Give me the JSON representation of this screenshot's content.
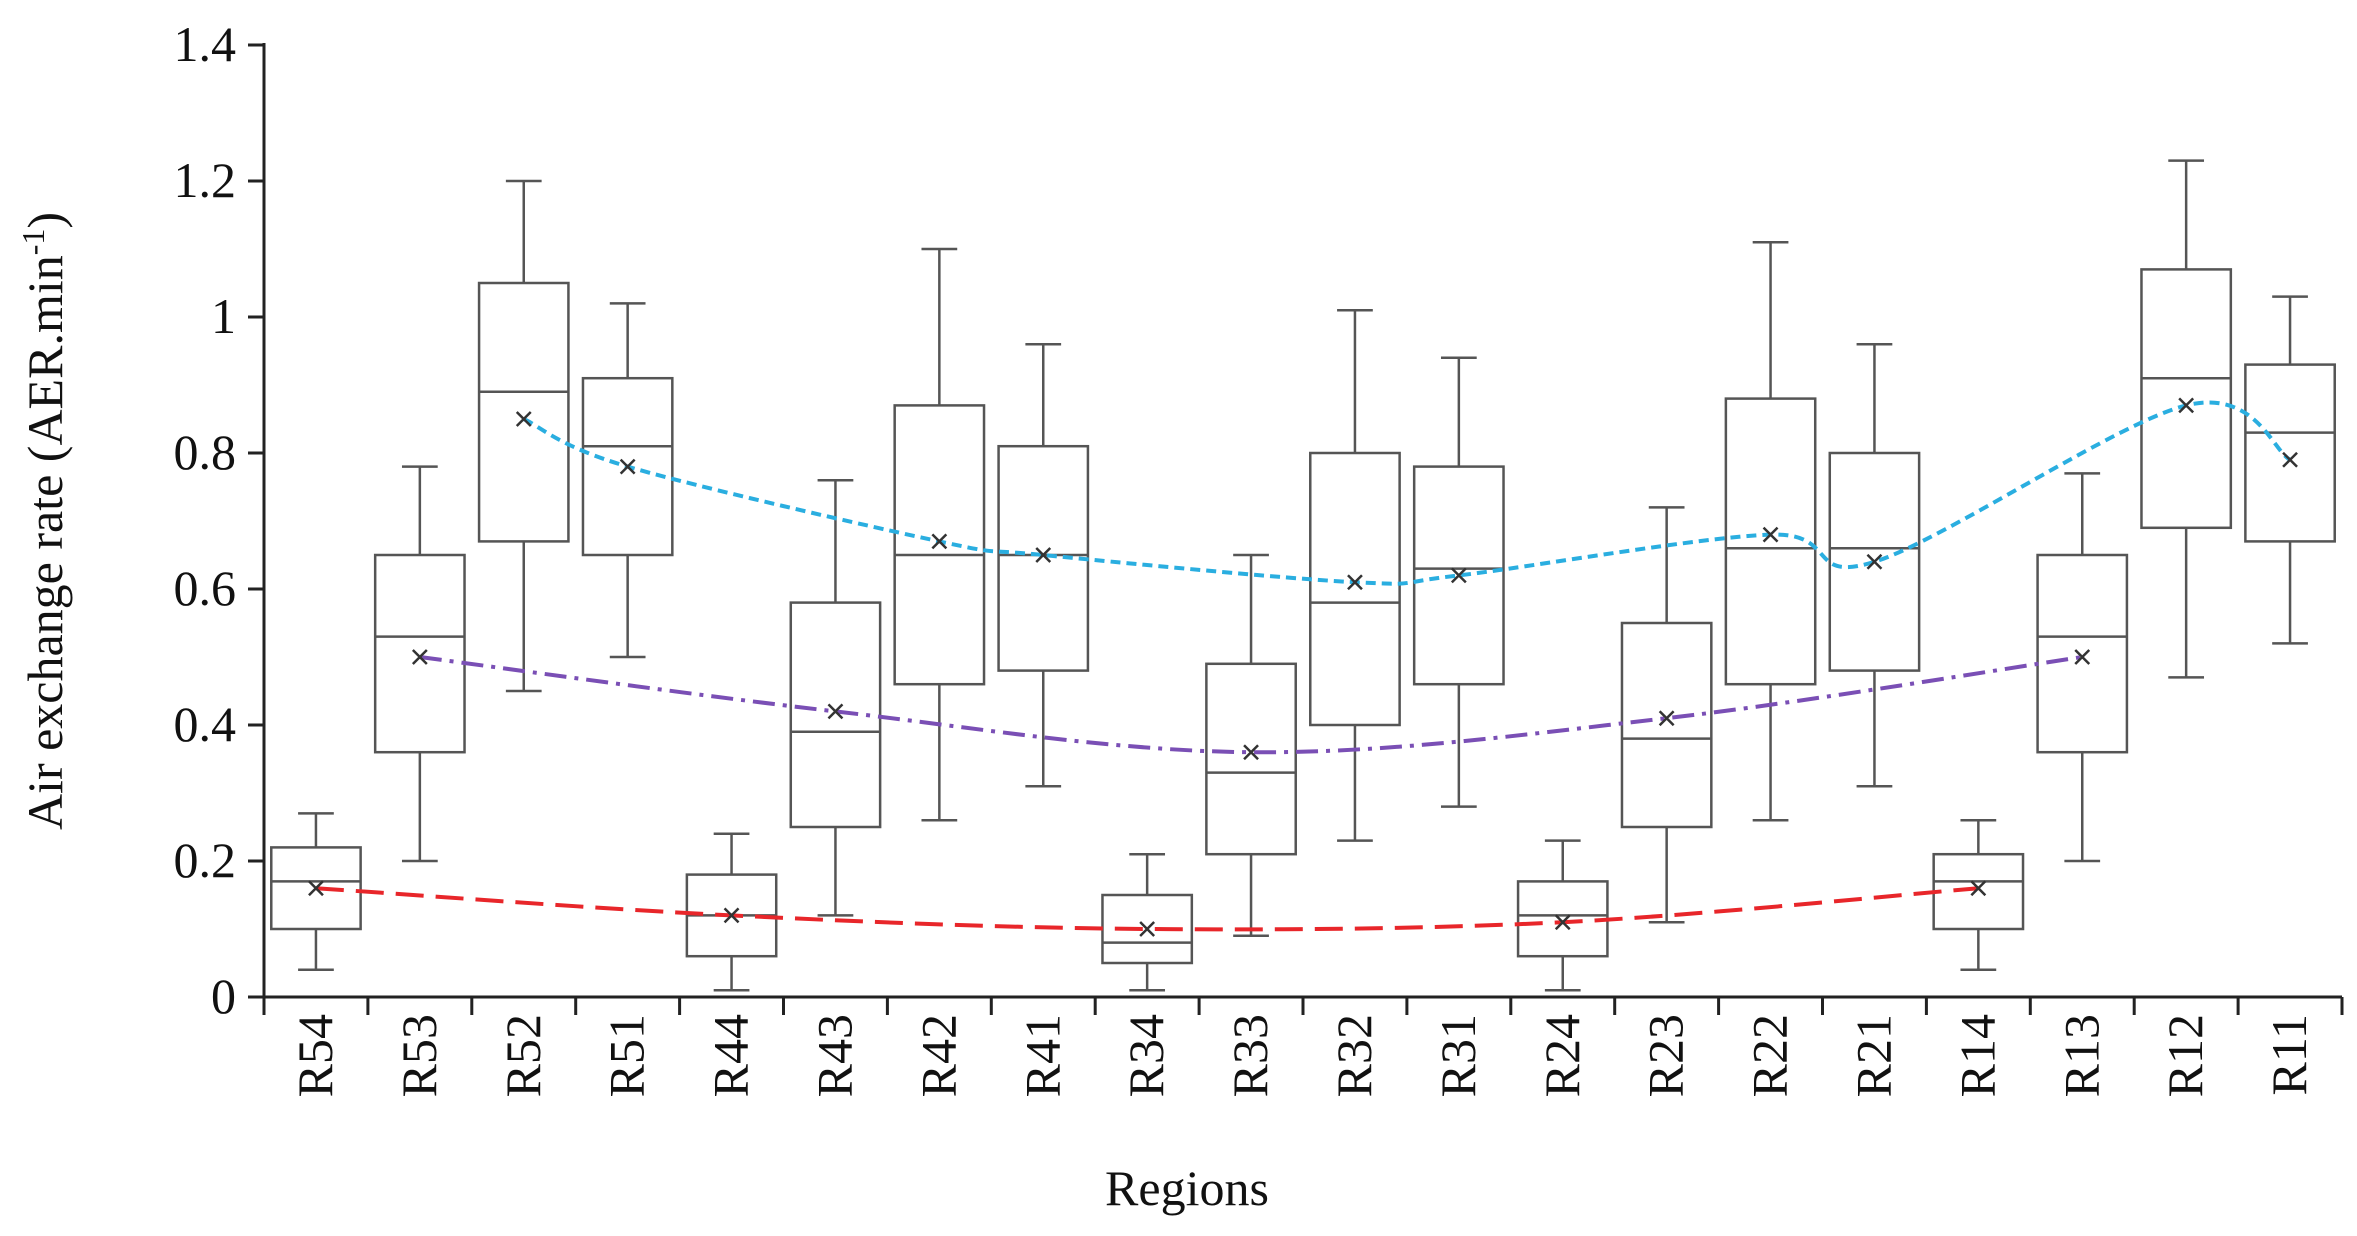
{
  "chart_data": {
    "type": "box",
    "xlabel": "Regions",
    "ylabel_parts": [
      "Air exchange rate (AER.min",
      "-1",
      ")"
    ],
    "ylim": [
      0,
      1.4
    ],
    "yticks": [
      0,
      0.2,
      0.4,
      0.6,
      0.8,
      1,
      1.2,
      1.4
    ],
    "categories": [
      "R54",
      "R53",
      "R52",
      "R51",
      "R44",
      "R43",
      "R42",
      "R41",
      "R34",
      "R33",
      "R32",
      "R31",
      "R24",
      "R23",
      "R22",
      "R21",
      "R14",
      "R13",
      "R12",
      "R11"
    ],
    "box_color": "#555555",
    "mean_color": "#333333",
    "trend_dash": {
      "#e8262a": "28 12",
      "#7a4fb5": "22 8 4 8",
      "#2aaee0": "10 6"
    },
    "boxes": [
      {
        "low": 0.04,
        "q1": 0.1,
        "median": 0.17,
        "q3": 0.22,
        "high": 0.27,
        "mean": 0.16,
        "trend_color": "#e8262a"
      },
      {
        "low": 0.2,
        "q1": 0.36,
        "median": 0.53,
        "q3": 0.65,
        "high": 0.78,
        "mean": 0.5,
        "trend_color": "#7a4fb5"
      },
      {
        "low": 0.45,
        "q1": 0.67,
        "median": 0.89,
        "q3": 1.05,
        "high": 1.2,
        "mean": 0.85,
        "trend_color": "#2aaee0"
      },
      {
        "low": 0.5,
        "q1": 0.65,
        "median": 0.81,
        "q3": 0.91,
        "high": 1.02,
        "mean": 0.78,
        "trend_color": "#2aaee0"
      },
      {
        "low": 0.01,
        "q1": 0.06,
        "median": 0.12,
        "q3": 0.18,
        "high": 0.24,
        "mean": 0.12,
        "trend_color": "#e8262a"
      },
      {
        "low": 0.12,
        "q1": 0.25,
        "median": 0.39,
        "q3": 0.58,
        "high": 0.76,
        "mean": 0.42,
        "trend_color": "#7a4fb5"
      },
      {
        "low": 0.26,
        "q1": 0.46,
        "median": 0.65,
        "q3": 0.87,
        "high": 1.1,
        "mean": 0.67,
        "trend_color": "#2aaee0"
      },
      {
        "low": 0.31,
        "q1": 0.48,
        "median": 0.65,
        "q3": 0.81,
        "high": 0.96,
        "mean": 0.65,
        "trend_color": "#2aaee0"
      },
      {
        "low": 0.01,
        "q1": 0.05,
        "median": 0.08,
        "q3": 0.15,
        "high": 0.21,
        "mean": 0.1,
        "trend_color": "#e8262a"
      },
      {
        "low": 0.09,
        "q1": 0.21,
        "median": 0.33,
        "q3": 0.49,
        "high": 0.65,
        "mean": 0.36,
        "trend_color": "#7a4fb5"
      },
      {
        "low": 0.23,
        "q1": 0.4,
        "median": 0.58,
        "q3": 0.8,
        "high": 1.01,
        "mean": 0.61,
        "trend_color": "#2aaee0"
      },
      {
        "low": 0.28,
        "q1": 0.46,
        "median": 0.63,
        "q3": 0.78,
        "high": 0.94,
        "mean": 0.62,
        "trend_color": "#2aaee0"
      },
      {
        "low": 0.01,
        "q1": 0.06,
        "median": 0.12,
        "q3": 0.17,
        "high": 0.23,
        "mean": 0.11,
        "trend_color": "#e8262a"
      },
      {
        "low": 0.11,
        "q1": 0.25,
        "median": 0.38,
        "q3": 0.55,
        "high": 0.72,
        "mean": 0.41,
        "trend_color": "#7a4fb5"
      },
      {
        "low": 0.26,
        "q1": 0.46,
        "median": 0.66,
        "q3": 0.88,
        "high": 1.11,
        "mean": 0.68,
        "trend_color": "#2aaee0"
      },
      {
        "low": 0.31,
        "q1": 0.48,
        "median": 0.66,
        "q3": 0.8,
        "high": 0.96,
        "mean": 0.64,
        "trend_color": "#2aaee0"
      },
      {
        "low": 0.04,
        "q1": 0.1,
        "median": 0.17,
        "q3": 0.21,
        "high": 0.26,
        "mean": 0.16,
        "trend_color": "#e8262a"
      },
      {
        "low": 0.2,
        "q1": 0.36,
        "median": 0.53,
        "q3": 0.65,
        "high": 0.77,
        "mean": 0.5,
        "trend_color": "#7a4fb5"
      },
      {
        "low": 0.47,
        "q1": 0.69,
        "median": 0.91,
        "q3": 1.07,
        "high": 1.23,
        "mean": 0.87,
        "trend_color": "#2aaee0"
      },
      {
        "low": 0.52,
        "q1": 0.67,
        "median": 0.83,
        "q3": 0.93,
        "high": 1.03,
        "mean": 0.79,
        "trend_color": "#2aaee0"
      }
    ]
  }
}
